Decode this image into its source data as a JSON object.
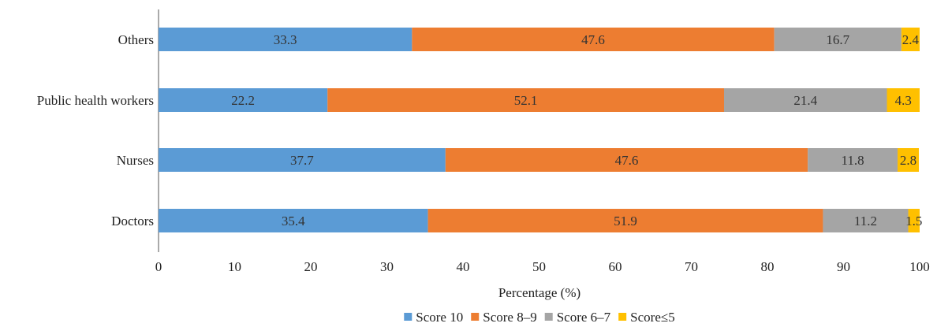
{
  "chart_data": {
    "type": "bar",
    "orientation": "horizontal",
    "stacked": true,
    "categories": [
      "Others",
      "Public health workers",
      "Nurses",
      "Doctors"
    ],
    "series": [
      {
        "name": "Score 10",
        "color": "#5B9BD5",
        "values": [
          33.3,
          22.2,
          37.7,
          35.4
        ]
      },
      {
        "name": "Score 8–9",
        "color": "#ED7D31",
        "values": [
          47.6,
          52.1,
          47.6,
          51.9
        ]
      },
      {
        "name": "Score 6–7",
        "color": "#A5A5A5",
        "values": [
          16.7,
          21.4,
          11.8,
          11.2
        ]
      },
      {
        "name": "Score≤5",
        "color": "#FFC000",
        "values": [
          2.4,
          4.3,
          2.8,
          1.5
        ]
      }
    ],
    "xlabel": "Percentage (%)",
    "ylabel": "",
    "xlim": [
      0,
      100
    ],
    "xticks": [
      0,
      10,
      20,
      30,
      40,
      50,
      60,
      70,
      80,
      90,
      100
    ],
    "grid": false,
    "legend_position": "bottom"
  }
}
